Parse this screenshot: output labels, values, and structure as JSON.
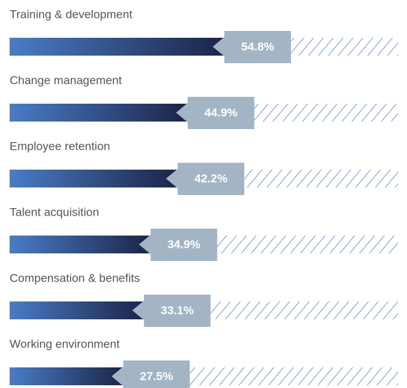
{
  "chart_data": {
    "type": "bar",
    "categories": [
      "Training & development",
      "Change management",
      "Employee retention",
      "Talent acquisition",
      "Compensation & benefits",
      "Working environment"
    ],
    "values": [
      54.8,
      44.9,
      42.2,
      34.9,
      33.1,
      27.5
    ],
    "value_labels": [
      "54.8%",
      "44.9%",
      "42.2%",
      "34.9%",
      "33.1%",
      "27.5%"
    ],
    "xlim": [
      0,
      100
    ],
    "color": "#a3b4c4"
  }
}
